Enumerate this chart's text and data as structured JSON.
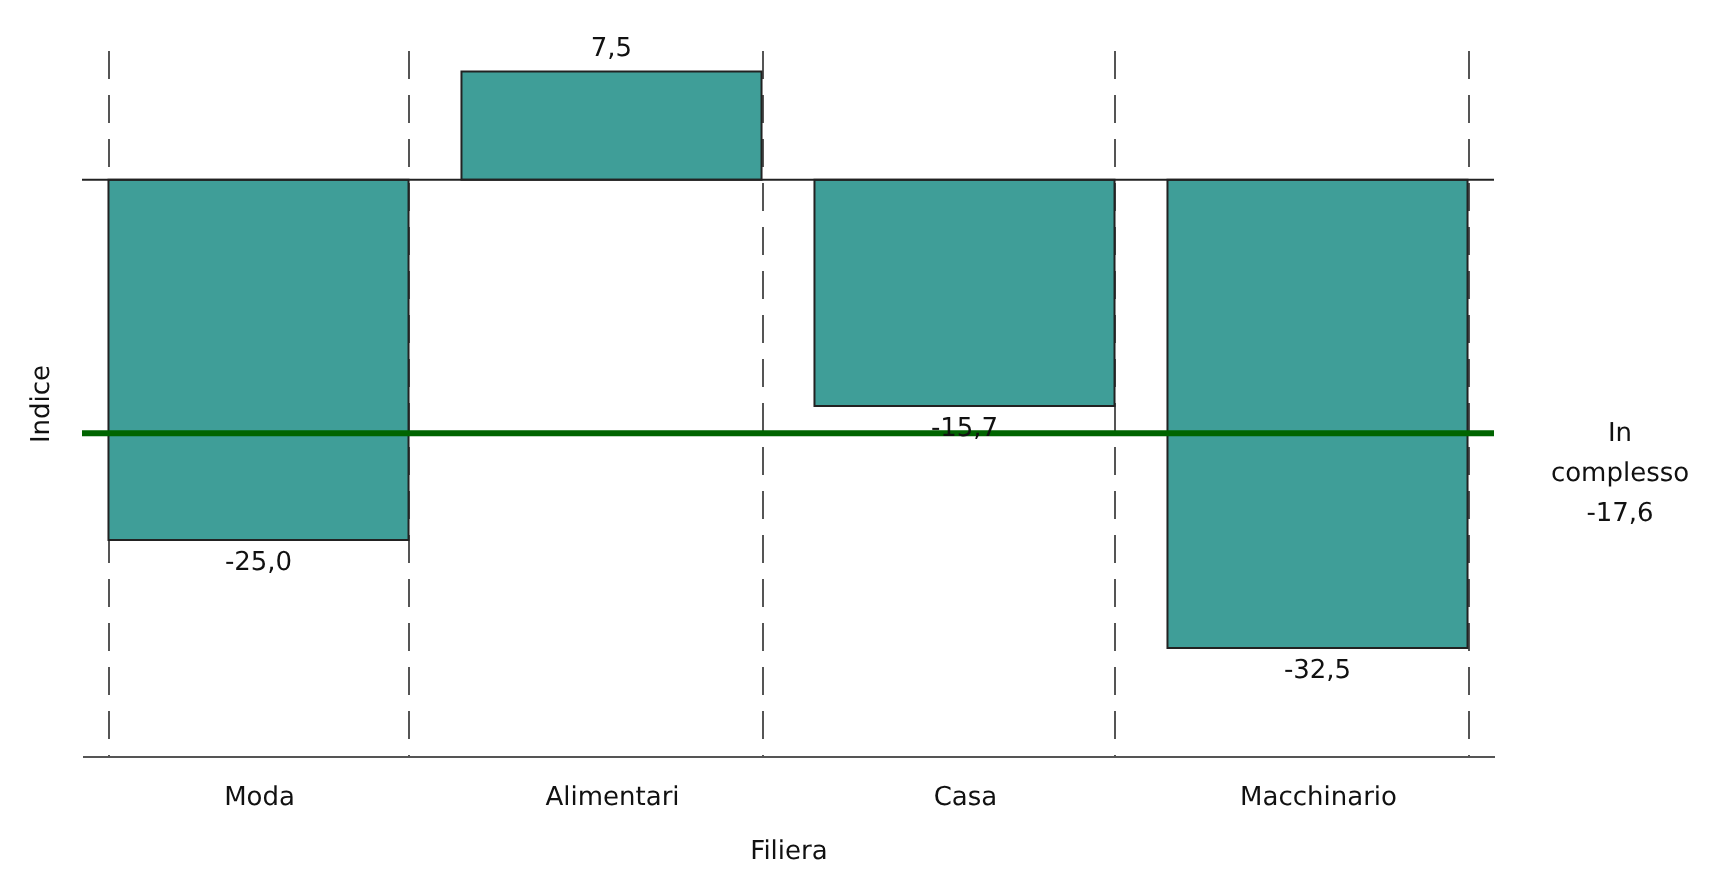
{
  "chart_data": {
    "type": "bar",
    "xlabel": "Filiera",
    "ylabel": "Indice",
    "categories": [
      "Moda",
      "Alimentari",
      "Casa",
      "Macchinario"
    ],
    "values": [
      -25.0,
      7.5,
      -15.7,
      -32.5
    ],
    "value_labels": [
      "-25,0",
      "7,5",
      "-15,7",
      "-32,5"
    ],
    "color": "#3f9e98",
    "ylim": [
      -40,
      9
    ],
    "grid": "x",
    "ref_lines": [
      {
        "axis": "y",
        "value": -17.6,
        "label": "In complesso -17,6",
        "color": "#006400"
      }
    ]
  }
}
